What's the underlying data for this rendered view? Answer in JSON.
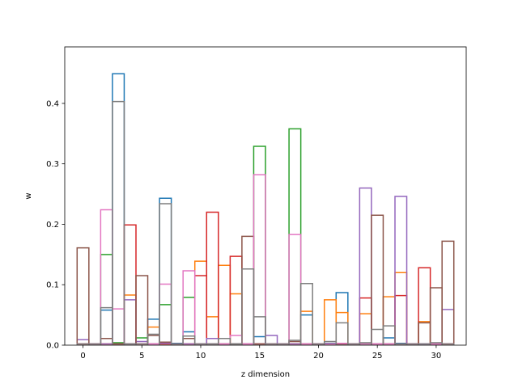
{
  "chart_data": {
    "type": "bar",
    "style": "step-outline histogram, unfilled bars of width 1 centred on integer x",
    "title": "",
    "xlabel": "z dimension",
    "ylabel": "w",
    "xlim": [
      -1.55,
      32.55
    ],
    "ylim": [
      0,
      0.4935
    ],
    "x_ticks": [
      0,
      5,
      10,
      15,
      20,
      25,
      30
    ],
    "x_tick_labels": [
      "0",
      "5",
      "10",
      "15",
      "20",
      "25",
      "30"
    ],
    "y_ticks": [
      0.0,
      0.1,
      0.2,
      0.3,
      0.4
    ],
    "y_tick_labels": [
      "0.0",
      "0.1",
      "0.2",
      "0.3",
      "0.4"
    ],
    "grid": false,
    "legend": "none",
    "x": [
      0,
      1,
      2,
      3,
      4,
      5,
      6,
      7,
      8,
      9,
      10,
      11,
      12,
      13,
      14,
      15,
      16,
      17,
      18,
      19,
      20,
      21,
      22,
      23,
      24,
      25,
      26,
      27,
      28,
      29,
      30,
      31
    ],
    "series": [
      {
        "color": "#1f77b4",
        "values": [
          0.002,
          0.002,
          0.058,
          0.449,
          0.002,
          0.002,
          0.043,
          0.243,
          0.003,
          0.022,
          0.002,
          0.002,
          0.002,
          0.002,
          0.002,
          0.014,
          0.002,
          0.002,
          0.002,
          0.05,
          0.002,
          0.003,
          0.087,
          0.002,
          0.002,
          0.002,
          0.012,
          0.003,
          0.002,
          0.002,
          0.002,
          0.002
        ]
      },
      {
        "color": "#ff7f0e",
        "values": [
          0.002,
          0.002,
          0.002,
          0.002,
          0.083,
          0.002,
          0.03,
          0.002,
          0.002,
          0.002,
          0.139,
          0.047,
          0.132,
          0.085,
          0.002,
          0.002,
          0.002,
          0.002,
          0.002,
          0.056,
          0.002,
          0.075,
          0.054,
          0.002,
          0.052,
          0.002,
          0.08,
          0.12,
          0.002,
          0.039,
          0.002,
          0.002
        ]
      },
      {
        "color": "#2ca02c",
        "values": [
          0.002,
          0.002,
          0.15,
          0.004,
          0.002,
          0.012,
          0.002,
          0.067,
          0.002,
          0.079,
          0.002,
          0.002,
          0.002,
          0.002,
          0.002,
          0.329,
          0.002,
          0.002,
          0.358,
          0.002,
          0.002,
          0.002,
          0.002,
          0.002,
          0.002,
          0.002,
          0.002,
          0.002,
          0.002,
          0.002,
          0.002,
          0.002
        ]
      },
      {
        "color": "#d62728",
        "values": [
          0.002,
          0.002,
          0.002,
          0.002,
          0.199,
          0.002,
          0.002,
          0.002,
          0.002,
          0.002,
          0.115,
          0.22,
          0.002,
          0.147,
          0.002,
          0.002,
          0.002,
          0.002,
          0.002,
          0.002,
          0.002,
          0.002,
          0.002,
          0.002,
          0.078,
          0.002,
          0.002,
          0.082,
          0.002,
          0.128,
          0.002,
          0.002
        ]
      },
      {
        "color": "#9467bd",
        "values": [
          0.009,
          0.002,
          0.002,
          0.002,
          0.075,
          0.006,
          0.002,
          0.003,
          0.002,
          0.002,
          0.002,
          0.011,
          0.002,
          0.002,
          0.002,
          0.002,
          0.016,
          0.002,
          0.002,
          0.002,
          0.002,
          0.002,
          0.002,
          0.002,
          0.26,
          0.002,
          0.002,
          0.246,
          0.002,
          0.002,
          0.002,
          0.059
        ]
      },
      {
        "color": "#8c564b",
        "values": [
          0.161,
          0.002,
          0.011,
          0.002,
          0.002,
          0.115,
          0.016,
          0.005,
          0.002,
          0.011,
          0.002,
          0.002,
          0.002,
          0.002,
          0.18,
          0.002,
          0.002,
          0.002,
          0.006,
          0.002,
          0.002,
          0.002,
          0.002,
          0.002,
          0.002,
          0.215,
          0.002,
          0.002,
          0.002,
          0.037,
          0.095,
          0.172
        ]
      },
      {
        "color": "#e377c2",
        "values": [
          0.002,
          0.002,
          0.224,
          0.06,
          0.002,
          0.002,
          0.002,
          0.101,
          0.002,
          0.123,
          0.002,
          0.002,
          0.002,
          0.016,
          0.002,
          0.282,
          0.002,
          0.002,
          0.183,
          0.002,
          0.002,
          0.002,
          0.003,
          0.002,
          0.002,
          0.002,
          0.002,
          0.002,
          0.002,
          0.002,
          0.002,
          0.002
        ]
      },
      {
        "color": "#7f7f7f",
        "values": [
          0.002,
          0.002,
          0.062,
          0.403,
          0.002,
          0.002,
          0.018,
          0.234,
          0.002,
          0.015,
          0.002,
          0.002,
          0.011,
          0.002,
          0.126,
          0.047,
          0.002,
          0.002,
          0.008,
          0.102,
          0.002,
          0.006,
          0.037,
          0.002,
          0.004,
          0.026,
          0.032,
          0.002,
          0.002,
          0.002,
          0.004,
          0.002
        ]
      }
    ]
  }
}
